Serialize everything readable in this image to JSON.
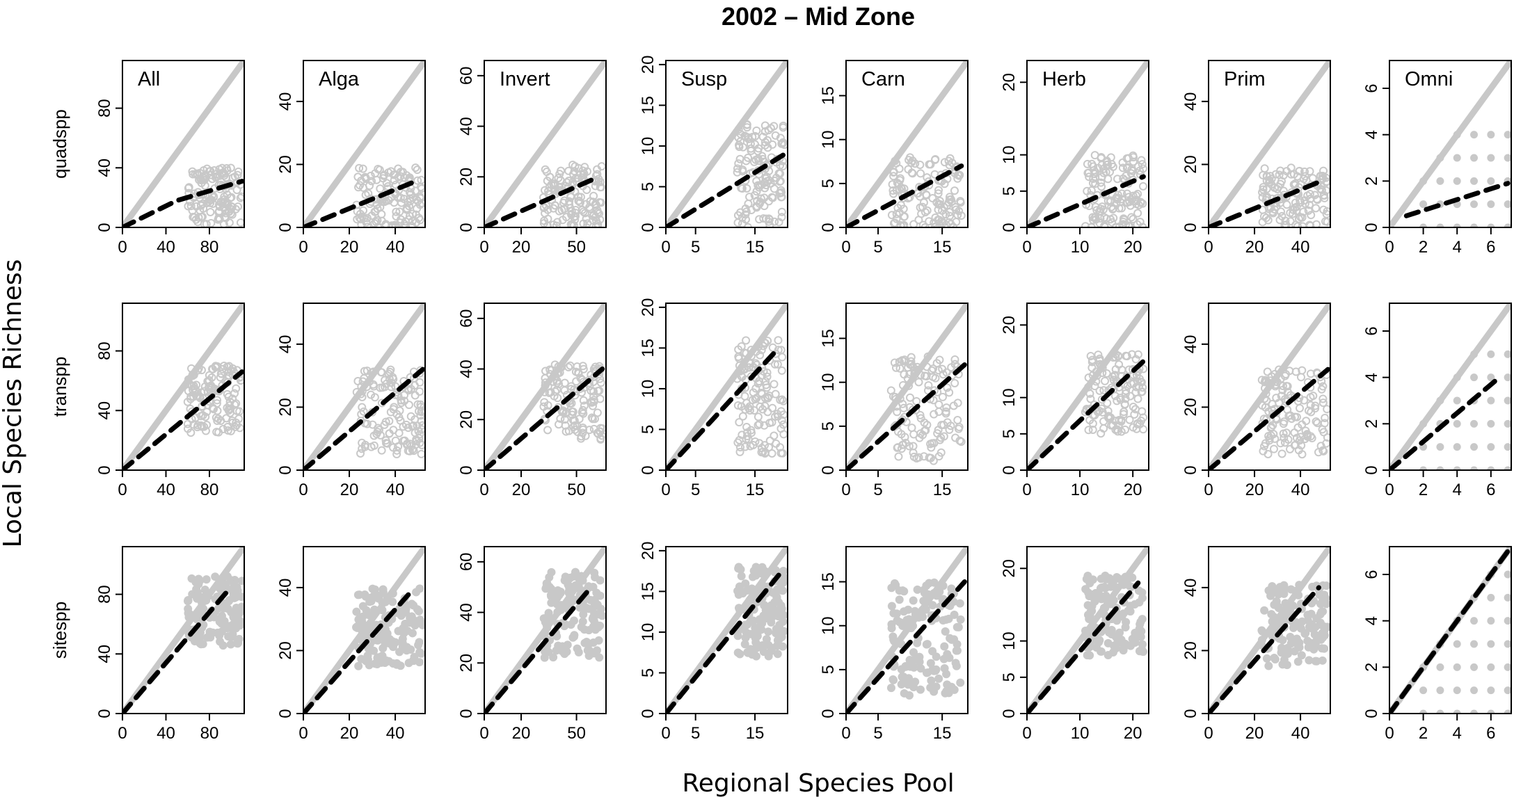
{
  "figure": {
    "title": "2002 – Mid Zone",
    "xlabel": "Regional Species Pool",
    "ylabel": "Local Species Richness"
  },
  "style": {
    "point_color": "#c8c8c8",
    "line_color": "#c8c8c8",
    "fit_color": "#000000"
  },
  "chart_data": {
    "type": "scatter",
    "rows": [
      "quadspp",
      "transpp",
      "sitespp"
    ],
    "columns": [
      "All",
      "Alga",
      "Invert",
      "Susp",
      "Carn",
      "Herb",
      "Prim",
      "Omni"
    ],
    "axes": [
      {
        "xmax": 112,
        "xticks": [
          0,
          40,
          80
        ],
        "ymax": 112,
        "yticks": [
          0,
          40,
          80
        ]
      },
      {
        "xmax": 53,
        "xticks": [
          0,
          20,
          40
        ],
        "ymax": 53,
        "yticks": [
          0,
          20,
          40
        ]
      },
      {
        "xmax": 66,
        "xticks": [
          0,
          20,
          50
        ],
        "ymax": 66,
        "yticks": [
          0,
          20,
          40,
          60
        ]
      },
      {
        "xmax": 20.5,
        "xticks": [
          0,
          5,
          15
        ],
        "ymax": 20.5,
        "yticks": [
          0,
          5,
          10,
          15,
          20
        ]
      },
      {
        "xmax": 19,
        "xticks": [
          0,
          5,
          15
        ],
        "ymax": 19,
        "yticks": [
          0,
          5,
          10,
          15
        ]
      },
      {
        "xmax": 23,
        "xticks": [
          0,
          10,
          20
        ],
        "ymax": 23,
        "yticks": [
          0,
          5,
          10,
          20
        ]
      },
      {
        "xmax": 53,
        "xticks": [
          0,
          20,
          40
        ],
        "ymax": 53,
        "yticks": [
          0,
          20,
          40
        ]
      },
      {
        "xmax": 7.2,
        "xticks": [
          0,
          2,
          4,
          6
        ],
        "ymax": 7.2,
        "yticks": [
          0,
          2,
          4,
          6
        ]
      }
    ],
    "panels": [
      [
        {
          "fit": [
            [
              0,
              0
            ],
            [
              50,
              18
            ],
            [
              110,
              31
            ]
          ],
          "cloud": {
            "xr": [
              60,
              110
            ],
            "yr": [
              2,
              40
            ]
          }
        },
        {
          "fit": [
            [
              0,
              0
            ],
            [
              50,
              15
            ]
          ],
          "cloud": {
            "xr": [
              23,
              52
            ],
            "yr": [
              0,
              19
            ]
          }
        },
        {
          "fit": [
            [
              0,
              0
            ],
            [
              62,
              20
            ]
          ],
          "cloud": {
            "xr": [
              32,
              64
            ],
            "yr": [
              0,
              25
            ]
          }
        },
        {
          "fit": [
            [
              0,
              0
            ],
            [
              20,
              9
            ]
          ],
          "cloud": {
            "xr": [
              12,
              20
            ],
            "yr": [
              0,
              13
            ]
          }
        },
        {
          "fit": [
            [
              0,
              0
            ],
            [
              18,
              7
            ]
          ],
          "cloud": {
            "xr": [
              7,
              18
            ],
            "yr": [
              0,
              8
            ]
          }
        },
        {
          "fit": [
            [
              0,
              0
            ],
            [
              22,
              7
            ]
          ],
          "cloud": {
            "xr": [
              11,
              22
            ],
            "yr": [
              0,
              10
            ]
          }
        },
        {
          "fit": [
            [
              0,
              0
            ],
            [
              50,
              15
            ]
          ],
          "cloud": {
            "xr": [
              23,
              52
            ],
            "yr": [
              0,
              19
            ]
          }
        },
        {
          "fit": [
            [
              1,
              0.5
            ],
            [
              7,
              1.9
            ]
          ],
          "cloud": {
            "xr": [
              2,
              7
            ],
            "yr": [
              0,
              4
            ]
          },
          "discrete": true
        }
      ],
      [
        {
          "fit": [
            [
              0,
              0
            ],
            [
              110,
              66
            ]
          ],
          "cloud": {
            "xr": [
              60,
              110
            ],
            "yr": [
              25,
              70
            ]
          }
        },
        {
          "fit": [
            [
              0,
              0
            ],
            [
              52,
              32
            ]
          ],
          "cloud": {
            "xr": [
              23,
              52
            ],
            "yr": [
              5,
              32
            ]
          }
        },
        {
          "fit": [
            [
              0,
              0
            ],
            [
              64,
              40
            ]
          ],
          "cloud": {
            "xr": [
              32,
              64
            ],
            "yr": [
              12,
              42
            ]
          }
        },
        {
          "fit": [
            [
              0,
              0
            ],
            [
              19,
              15
            ]
          ],
          "cloud": {
            "xr": [
              12,
              20
            ],
            "yr": [
              2,
              16
            ]
          }
        },
        {
          "fit": [
            [
              0,
              0
            ],
            [
              18.5,
              12
            ]
          ],
          "cloud": {
            "xr": [
              7,
              18
            ],
            "yr": [
              1,
              13
            ]
          }
        },
        {
          "fit": [
            [
              0,
              0
            ],
            [
              22,
              15
            ]
          ],
          "cloud": {
            "xr": [
              11,
              22
            ],
            "yr": [
              5,
              16
            ]
          }
        },
        {
          "fit": [
            [
              0,
              0
            ],
            [
              52,
              32
            ]
          ],
          "cloud": {
            "xr": [
              23,
              52
            ],
            "yr": [
              5,
              32
            ]
          }
        },
        {
          "fit": [
            [
              0,
              0
            ],
            [
              6.5,
              4
            ]
          ],
          "cloud": {
            "xr": [
              2,
              7
            ],
            "yr": [
              0,
              5
            ]
          },
          "discrete": true
        }
      ],
      [
        {
          "fit": [
            [
              0,
              0
            ],
            [
              100,
              85
            ]
          ],
          "cloud": {
            "xr": [
              60,
              110
            ],
            "yr": [
              45,
              92
            ]
          }
        },
        {
          "fit": [
            [
              0,
              0
            ],
            [
              46,
              38
            ]
          ],
          "cloud": {
            "xr": [
              23,
              52
            ],
            "yr": [
              15,
              40
            ]
          }
        },
        {
          "fit": [
            [
              0,
              0
            ],
            [
              58,
              50
            ]
          ],
          "cloud": {
            "xr": [
              32,
              64
            ],
            "yr": [
              22,
              56
            ]
          }
        },
        {
          "fit": [
            [
              0,
              0
            ],
            [
              19,
              17
            ]
          ],
          "cloud": {
            "xr": [
              12,
              20
            ],
            "yr": [
              7,
              18
            ]
          }
        },
        {
          "fit": [
            [
              0,
              0
            ],
            [
              18.5,
              15
            ]
          ],
          "cloud": {
            "xr": [
              7,
              18
            ],
            "yr": [
              2,
              15
            ]
          }
        },
        {
          "fit": [
            [
              0,
              0
            ],
            [
              21,
              18
            ]
          ],
          "cloud": {
            "xr": [
              11,
              22
            ],
            "yr": [
              8,
              19
            ]
          }
        },
        {
          "fit": [
            [
              0,
              0
            ],
            [
              48,
              40
            ]
          ],
          "cloud": {
            "xr": [
              23,
              52
            ],
            "yr": [
              15,
              41
            ]
          }
        },
        {
          "fit": [
            [
              0,
              0
            ],
            [
              7,
              7
            ]
          ],
          "cloud": {
            "xr": [
              2,
              7
            ],
            "yr": [
              0,
              6
            ]
          },
          "discrete": true
        }
      ]
    ]
  }
}
